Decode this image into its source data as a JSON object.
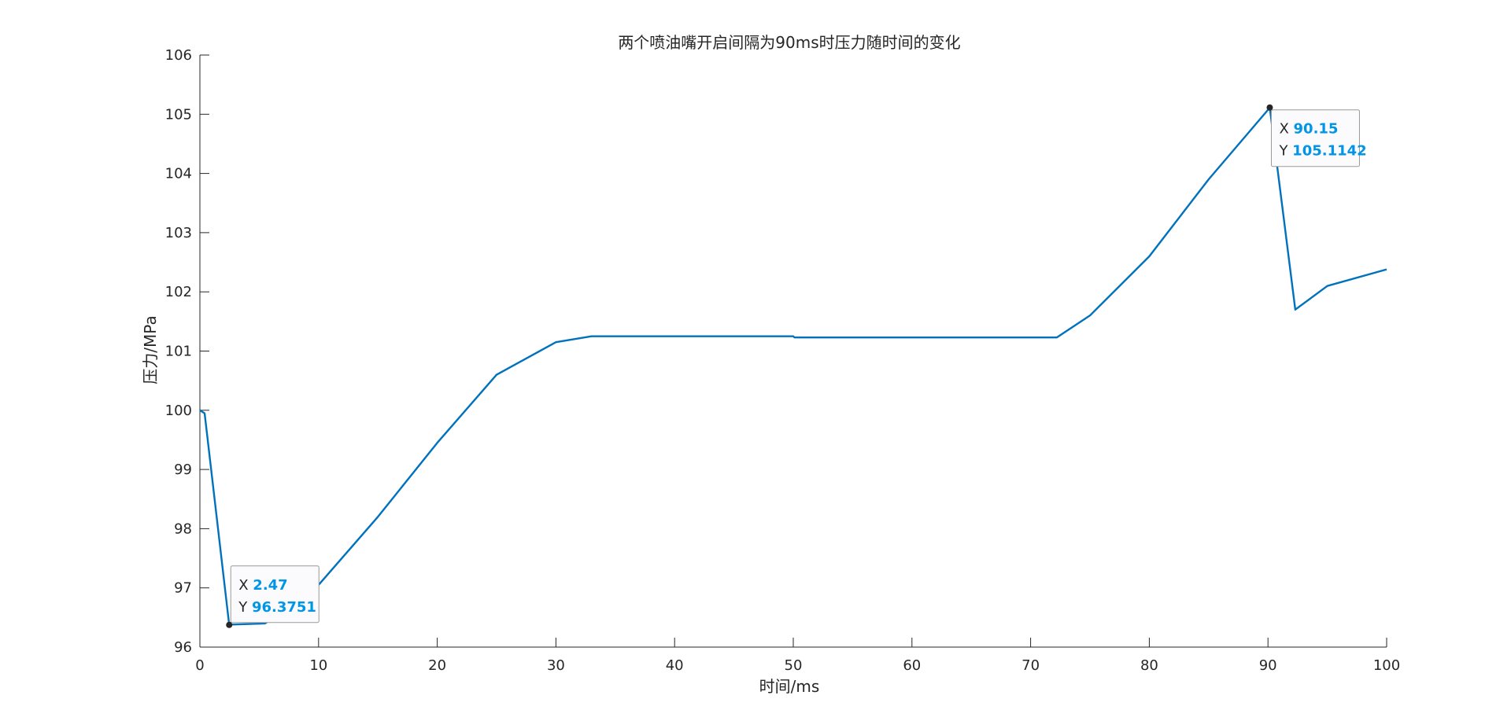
{
  "chart_data": {
    "type": "line",
    "title": "两个喷油嘴开启间隔为90ms时压力随时间的变化",
    "xlabel": "时间/ms",
    "ylabel": "压力/MPa",
    "xlim": [
      0,
      100
    ],
    "ylim": [
      96,
      106
    ],
    "xticks": [
      0,
      10,
      20,
      30,
      40,
      50,
      60,
      70,
      80,
      90,
      100
    ],
    "yticks": [
      96,
      97,
      98,
      99,
      100,
      101,
      102,
      103,
      104,
      105,
      106
    ],
    "grid": false,
    "line_color": "#0072BD",
    "series": [
      {
        "x": [
          0,
          0.4,
          2.47,
          5.5,
          10,
          15,
          20,
          25,
          30,
          33,
          40,
          50,
          50.1,
          60,
          72.2,
          75,
          80,
          85,
          90.15,
          92.3,
          95,
          100
        ],
        "y": [
          100,
          99.95,
          96.38,
          96.4,
          97.05,
          98.2,
          99.45,
          100.6,
          101.15,
          101.25,
          101.25,
          101.25,
          101.23,
          101.23,
          101.23,
          101.6,
          102.6,
          103.9,
          105.11,
          101.7,
          102.1,
          102.38
        ]
      }
    ],
    "datatips": [
      {
        "x_key": "X",
        "y_key": "Y",
        "x": 2.47,
        "y": 96.3751,
        "x_text": "2.47",
        "y_text": "96.3751",
        "placement": "above-right"
      },
      {
        "x_key": "X",
        "y_key": "Y",
        "x": 90.15,
        "y": 105.1142,
        "x_text": "90.15",
        "y_text": "105.1142",
        "placement": "below-right"
      }
    ],
    "datatip_value_color": "#0095E6"
  }
}
